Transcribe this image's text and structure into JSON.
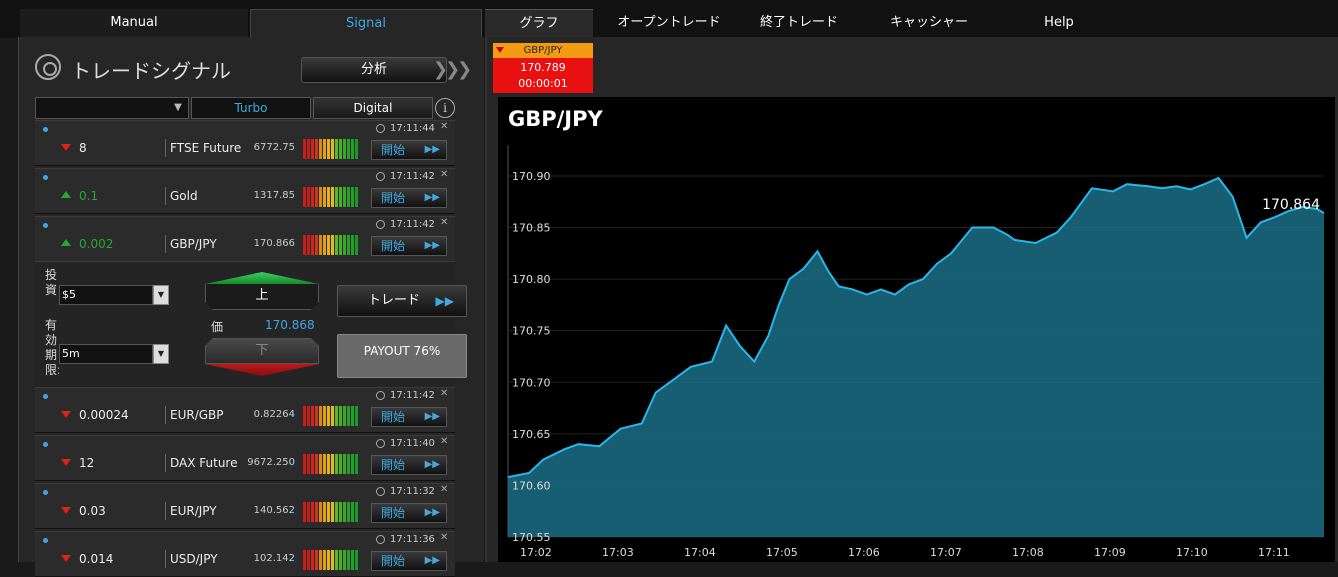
{
  "nav": {
    "tabs": [
      {
        "label": "Manual"
      },
      {
        "label": "Signal"
      },
      {
        "label": "グラフ"
      },
      {
        "label": "オープントレード"
      },
      {
        "label": "終了トレード"
      },
      {
        "label": "キャッシャー"
      },
      {
        "label": "Help"
      }
    ]
  },
  "signals": {
    "title": "トレードシグナル",
    "analyze_label": "分析",
    "filter": {
      "selected": "",
      "turbo": "Turbo",
      "digital": "Digital"
    },
    "start_label": "開始",
    "rows": [
      {
        "time": "17:11:44",
        "direction": "down",
        "change": "8",
        "asset": "FTSE Future",
        "price": "6772.75"
      },
      {
        "time": "17:11:42",
        "direction": "up",
        "change": "0.1",
        "asset": "Gold",
        "price": "1317.85"
      },
      {
        "time": "17:11:42",
        "direction": "up",
        "change": "0.002",
        "asset": "GBP/JPY",
        "price": "170.866"
      },
      {
        "time": "17:11:42",
        "direction": "down",
        "change": "0.00024",
        "asset": "EUR/GBP",
        "price": "0.82264"
      },
      {
        "time": "17:11:40",
        "direction": "down",
        "change": "12",
        "asset": "DAX Future",
        "price": "9672.250"
      },
      {
        "time": "17:11:32",
        "direction": "down",
        "change": "0.03",
        "asset": "EUR/JPY",
        "price": "140.562"
      },
      {
        "time": "17:11:36",
        "direction": "down",
        "change": "0.014",
        "asset": "USD/JPY",
        "price": "102.142"
      }
    ],
    "expanded": {
      "invest_label": "投資",
      "invest_value": "$5",
      "expiry_label": "有効期限:",
      "expiry_value": "5m",
      "up_label": "上",
      "down_label": "下",
      "price_label": "価",
      "price_value": "170.868",
      "trade_label": "トレード",
      "payout_label": "PAYOUT 76%"
    }
  },
  "asset_tab": {
    "name": "GBP/JPY",
    "price": "170.789",
    "countdown": "00:00:01"
  },
  "colors": {
    "accent": "#3fa9e0",
    "up": "#22a83a",
    "down": "#e02020",
    "chart_line": "#29b6e8",
    "chart_fill": "#1b6f86"
  },
  "chart_data": {
    "type": "area",
    "title": "GBP/JPY",
    "xlabel": "",
    "ylabel": "",
    "ylim": [
      170.55,
      170.93
    ],
    "y_ticks": [
      "170.90",
      "170.85",
      "170.80",
      "170.75",
      "170.70",
      "170.65",
      "170.60",
      "170.55"
    ],
    "x_ticks": [
      "17:02",
      "17:03",
      "17:04",
      "17:05",
      "17:06",
      "17:07",
      "17:08",
      "17:09",
      "17:10",
      "17:11"
    ],
    "last_value_label": "170.864",
    "series": [
      {
        "x": [
          0,
          0.3,
          0.5,
          0.8,
          1.0,
          1.3,
          1.6,
          1.9,
          2.1,
          2.3,
          2.6,
          2.9,
          3.1,
          3.3,
          3.5,
          3.7,
          3.85,
          4.0,
          4.2,
          4.4,
          4.55,
          4.7,
          4.9,
          5.1,
          5.3,
          5.5,
          5.7,
          5.9,
          6.1,
          6.3,
          6.6,
          6.9,
          7.1,
          7.2,
          7.5,
          7.8,
          8.0,
          8.3,
          8.6,
          8.8,
          9.1,
          9.3,
          9.5,
          9.7,
          9.9,
          10.1,
          10.3,
          10.5,
          10.7,
          10.9,
          11.1,
          11.3,
          11.5,
          11.6
        ],
        "y": [
          170.608,
          170.612,
          170.625,
          170.635,
          170.64,
          170.638,
          170.655,
          170.66,
          170.69,
          170.7,
          170.715,
          170.72,
          170.755,
          170.735,
          170.72,
          170.745,
          170.775,
          170.8,
          170.81,
          170.827,
          170.808,
          170.793,
          170.79,
          170.785,
          170.79,
          170.785,
          170.795,
          170.8,
          170.815,
          170.825,
          170.85,
          170.85,
          170.843,
          170.838,
          170.835,
          170.845,
          170.86,
          170.888,
          170.885,
          170.892,
          170.89,
          170.888,
          170.89,
          170.887,
          170.892,
          170.898,
          170.88,
          170.84,
          170.855,
          170.86,
          170.866,
          170.87,
          170.868,
          170.864
        ]
      }
    ]
  }
}
